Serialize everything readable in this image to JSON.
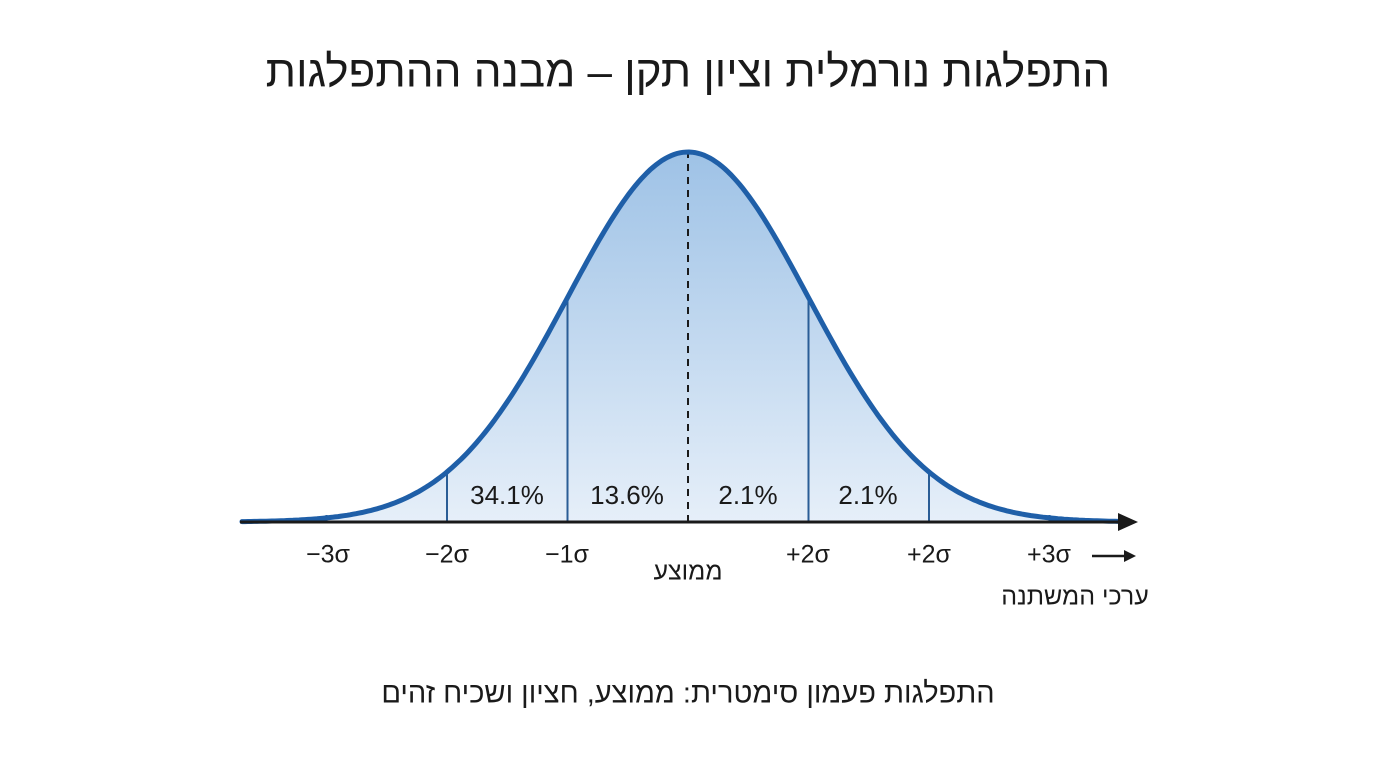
{
  "title": "התפלגות נורמלית וציון תקן – מבנה ההתפלגות",
  "axis_labels": [
    "−3σ",
    "−2σ",
    "−1σ",
    "+2σ",
    "+2σ",
    "+3σ"
  ],
  "mean_label": "ממוצע",
  "region_labels": [
    "34.1%",
    "13.6%",
    "2.1%",
    "2.1%"
  ],
  "axis_title": "ערכי המשתנה",
  "caption": "התפלגות פעמון סימטרית: ממוצע, חציון ושכיח זהים"
}
